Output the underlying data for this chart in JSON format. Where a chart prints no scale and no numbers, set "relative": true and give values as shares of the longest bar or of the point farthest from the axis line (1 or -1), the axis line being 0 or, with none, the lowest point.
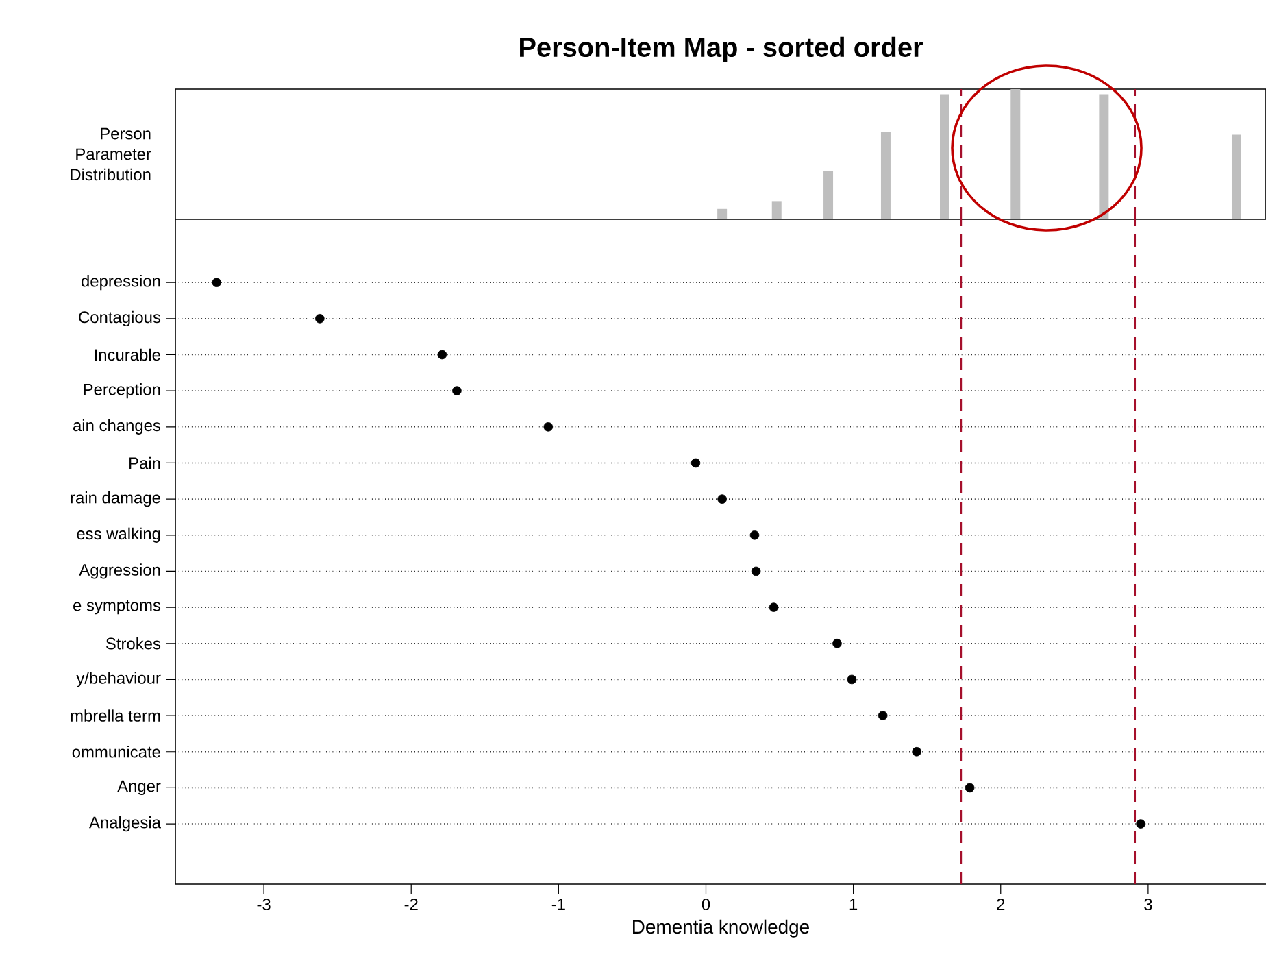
{
  "chart_data": [
    {
      "type": "bar",
      "title": "Person-Item Map - sorted order",
      "ylabel": "Person Parameter Distribution",
      "relative": true,
      "color": "#bebebe",
      "x": [
        0.11,
        0.48,
        0.83,
        1.22,
        1.62,
        2.1,
        2.7,
        3.6
      ],
      "values": [
        0.08,
        0.14,
        0.37,
        0.67,
        0.96,
        1,
        0.96,
        0.65
      ],
      "xlim": [
        -3.6,
        3.8
      ],
      "ref_lines": [
        {
          "axis": "x",
          "value": 1.73,
          "color": "#a50f2b",
          "line_style": "dashed"
        },
        {
          "axis": "x",
          "value": 2.91,
          "color": "#a50f2b",
          "line_style": "dashed"
        }
      ]
    },
    {
      "type": "scatter",
      "orientation": "horizontal",
      "xlabel": "Dementia knowledge",
      "color": "#000000",
      "marker": "circle",
      "grid": "y",
      "categories": [
        "depression",
        "Contagious",
        "Incurable",
        "Perception",
        "ain changes",
        "Pain",
        "rain damage",
        "ess walking",
        "Aggression",
        "e symptoms",
        "Strokes",
        "y/behaviour",
        "mbrella term",
        "ommunicate",
        "Anger",
        "Analgesia"
      ],
      "values": [
        -3.32,
        -2.62,
        -1.79,
        -1.69,
        -1.07,
        -0.07,
        0.11,
        0.33,
        0.34,
        0.46,
        0.89,
        0.99,
        1.2,
        1.43,
        1.79,
        2.95
      ],
      "xlim": [
        -3.6,
        3.8
      ],
      "xticks": [
        -3,
        -2,
        -1,
        0,
        1,
        2,
        3
      ],
      "ref_lines": [
        {
          "axis": "x",
          "value": 1.73,
          "color": "#a50f2b",
          "line_style": "dashed"
        },
        {
          "axis": "x",
          "value": 2.91,
          "color": "#a50f2b",
          "line_style": "dashed"
        }
      ]
    }
  ]
}
